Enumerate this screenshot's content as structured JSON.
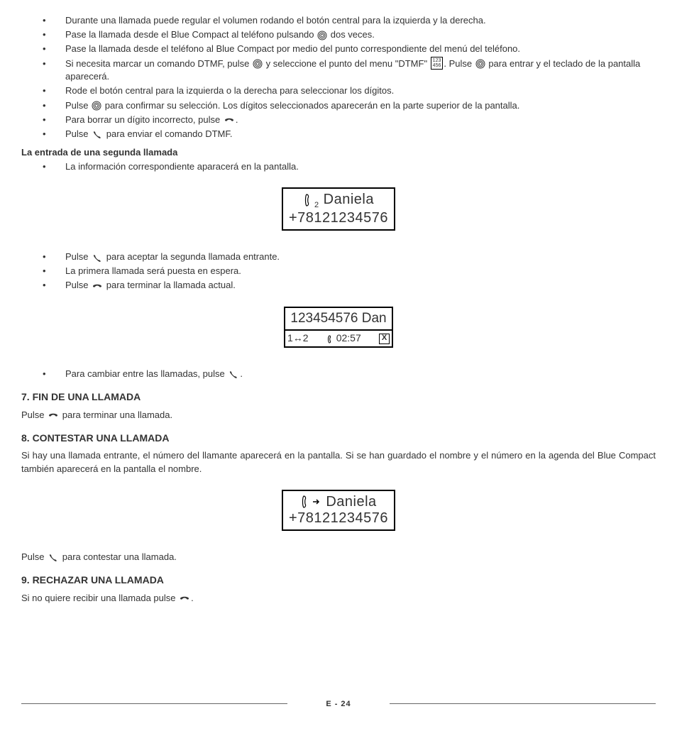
{
  "bullets1": [
    "Durante una llamada puede regular el volumen rodando el botón central para la izquierda y la derecha.",
    "Pase la llamada desde el Blue Compact al teléfono pulsando [CIRCLE] dos veces.",
    "Pase la llamada desde el teléfono al Blue Compact por medio del punto correspondiente del menú del teléfono.",
    "Si necesita marcar un comando DTMF, pulse [CIRCLE] y seleccione el punto del menu \"DTMF\" [DTMF]. Pulse [CIRCLE] para entrar y el teclado de la pantalla aparecerá.",
    "Rode el botón central para la izquierda o la derecha para seleccionar los dígitos.",
    "Pulse [CIRCLE] para confirmar su selección. Los dígitos seleccionados aparecerán en la parte superior de la pantalla.",
    "Para borrar un dígito incorrecto, pulse [PHONE-END].",
    "Pulse [PHONE-ANS] para enviar el comando DTMF."
  ],
  "second_call_heading": "La entrada de una segunda llamada",
  "bullets2": [
    "La información correspondiente aparacerá en la pantalla."
  ],
  "display1": {
    "line1_name": "Daniela",
    "line1_sub": "2",
    "line2": "+78121234576"
  },
  "bullets3": [
    "Pulse [PHONE-ANS] para aceptar la segunda llamada entrante.",
    "La primera llamada será puesta en espera.",
    "Pulse [PHONE-END] para terminar la llamada actual."
  ],
  "display2": {
    "top": "123454576 Dan",
    "swap": "1↔2",
    "time": "02:57"
  },
  "bullets4": [
    "Para cambiar entre las llamadas, pulse [PHONE-ANS]."
  ],
  "section7": {
    "heading": "7. FIN DE UNA LLAMADA",
    "text": "Pulse [PHONE-END] para terminar una llamada."
  },
  "section8": {
    "heading": "8. CONTESTAR UNA LLAMADA",
    "text": "Si hay una llamada entrante, el número del llamante aparecerá en la pantalla. Si se han guardado el nombre y el número en la agenda del Blue Compact también aparecerá en la pantalla el nombre."
  },
  "display3": {
    "line1_name": "Daniela",
    "line2": "+78121234576"
  },
  "after_display3": "Pulse [PHONE-ANS] para contestar una llamada.",
  "section9": {
    "heading": "9. RECHAZAR UNA LLAMADA",
    "text": "Si no quiere recibir una llamada pulse [PHONE-END]."
  },
  "footer": "E - 24",
  "icons": {
    "dtmf_text": "123\n456"
  }
}
